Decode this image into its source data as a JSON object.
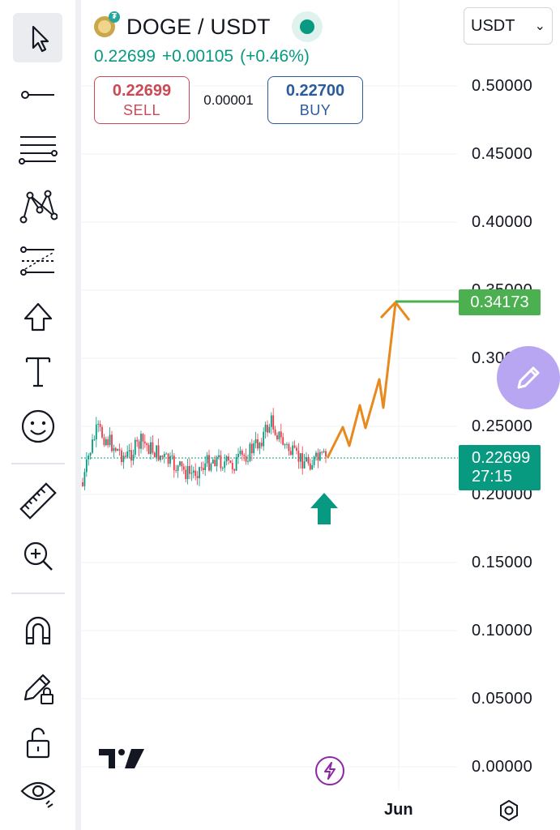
{
  "header": {
    "symbol": "DOGE / USDT",
    "last_price": "0.22699",
    "change_abs": "+0.00105",
    "change_pct": "(+0.46%)",
    "live_status_color": "#089981"
  },
  "trade": {
    "sell_price": "0.22699",
    "sell_label": "SELL",
    "spread": "0.00001",
    "buy_price": "0.22700",
    "buy_label": "BUY"
  },
  "currency_select": {
    "value": "USDT"
  },
  "price_axis": [
    "0.50000",
    "0.45000",
    "0.40000",
    "0.35000",
    "0.30000",
    "0.25000",
    "0.20000",
    "0.15000",
    "0.10000",
    "0.05000",
    "0.00000"
  ],
  "target_price": "0.34173",
  "current_price": {
    "value": "0.22699",
    "countdown": "27:15"
  },
  "time_axis": {
    "label": "Jun"
  },
  "sidebar": {
    "tools": [
      "cursor-icon",
      "trend-line-icon",
      "fib-retracement-icon",
      "pattern-icon",
      "forecast-icon",
      "arrow-up-icon",
      "text-icon",
      "emoji-icon",
      "ruler-icon",
      "zoom-in-icon",
      "magnet-icon",
      "lock-drawing-icon",
      "unlock-icon",
      "eye-icon"
    ]
  },
  "colors": {
    "up": "#089981",
    "down": "#f23645",
    "projection": "#e8891e",
    "target_line": "#4caf50",
    "fab": "#b9a6f2"
  }
}
